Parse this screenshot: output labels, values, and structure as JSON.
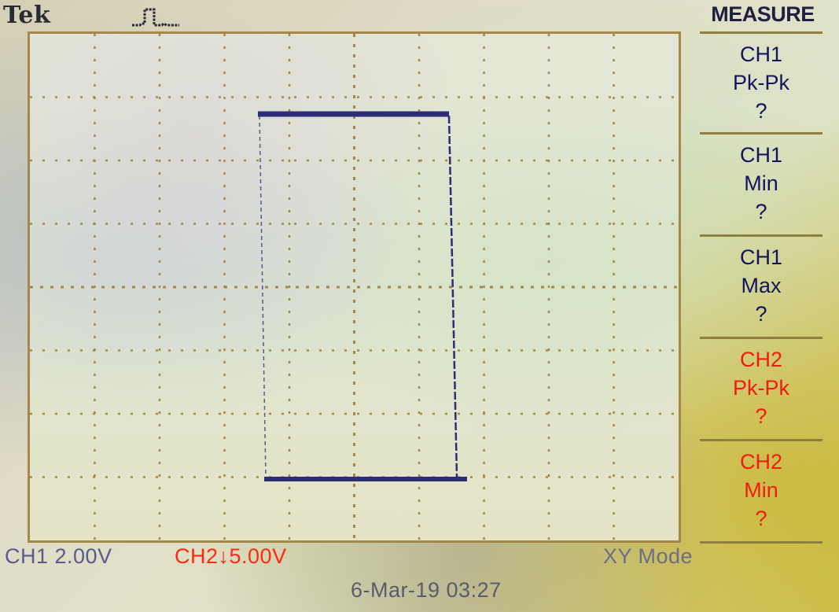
{
  "header": {
    "brand": "Tek",
    "trigger_icon": "square-pulse-icon"
  },
  "display": {
    "grid": true,
    "mode": "XY",
    "trace_color": "#2c2c78",
    "grid_color": "#a3884a"
  },
  "menu": {
    "title": "MEASURE",
    "items": [
      {
        "source": "CH1",
        "measurement": "Pk-Pk",
        "value": "?",
        "color": "#14145e"
      },
      {
        "source": "CH1",
        "measurement": "Min",
        "value": "?",
        "color": "#14145e"
      },
      {
        "source": "CH1",
        "measurement": "Max",
        "value": "?",
        "color": "#14145e"
      },
      {
        "source": "CH2",
        "measurement": "Pk-Pk",
        "value": "?",
        "color": "#f01c10"
      },
      {
        "source": "CH2",
        "measurement": "Min",
        "value": "?",
        "color": "#f01c10"
      }
    ]
  },
  "status": {
    "ch1": "CH1  2.00V",
    "ch2": "CH2↓5.00V",
    "mode": "XY Mode",
    "datetime": "6-Mar-19 03:27"
  }
}
